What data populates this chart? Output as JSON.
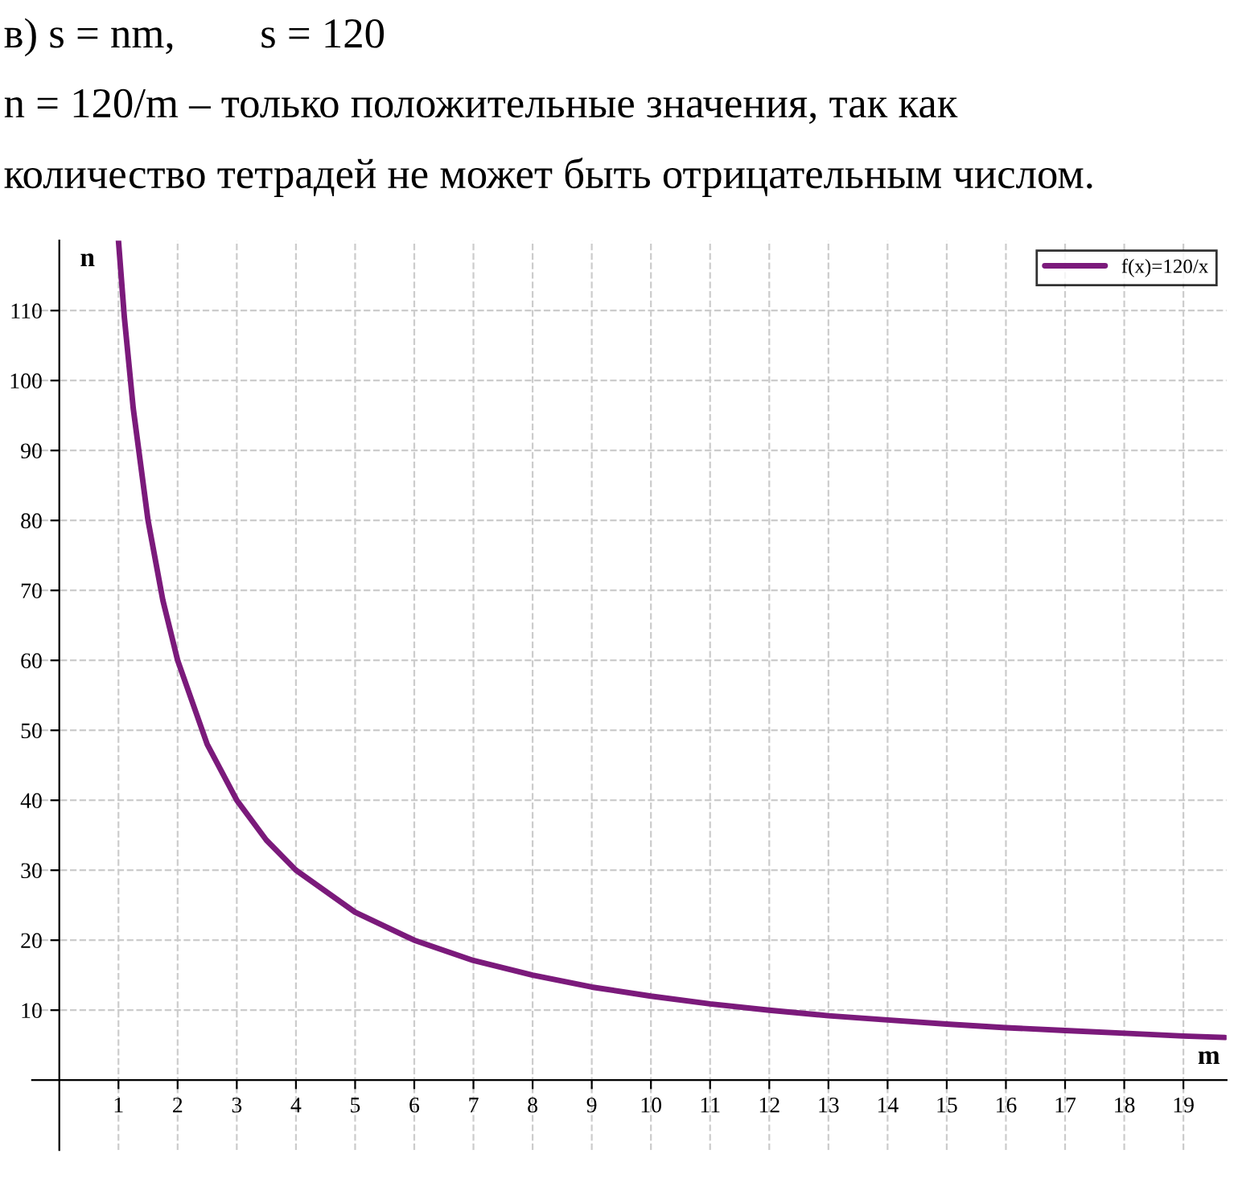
{
  "chart_data": {
    "type": "line",
    "annotations": [
      "в) s = nm,        s = 120",
      "n = 120/m – только положительные значения, так как",
      "количество тетрадей не может быть отрицательным числом."
    ],
    "xlabel": "m",
    "ylabel": "n",
    "x": [
      1,
      1.1,
      1.25,
      1.5,
      1.75,
      2,
      2.5,
      3,
      3.5,
      4,
      5,
      6,
      7,
      8,
      9,
      10,
      11,
      12,
      13,
      14,
      15,
      16,
      17,
      18,
      19,
      19.7
    ],
    "series": [
      {
        "name": "f(x)=120/x",
        "color": "#7b1a7b",
        "values": [
          120,
          109,
          96,
          80,
          68.6,
          60,
          48,
          40,
          34.3,
          30,
          24,
          20,
          17.1,
          15,
          13.3,
          12,
          10.9,
          10,
          9.2,
          8.6,
          8,
          7.5,
          7.1,
          6.7,
          6.3,
          6.1
        ]
      }
    ],
    "xlim": [
      -0.46,
      19.73
    ],
    "ylim": [
      -10,
      120
    ],
    "xticks": [
      1,
      2,
      3,
      4,
      5,
      6,
      7,
      8,
      9,
      10,
      11,
      12,
      13,
      14,
      15,
      16,
      17,
      18,
      19
    ],
    "yticks": [
      10,
      20,
      30,
      40,
      50,
      60,
      70,
      80,
      90,
      100,
      110
    ],
    "grid": true,
    "legend": "top right",
    "marker": "none",
    "line_style": "solid"
  }
}
